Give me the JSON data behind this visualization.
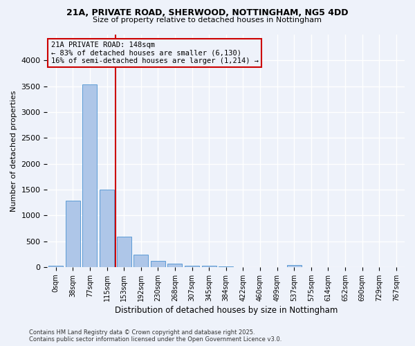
{
  "title1": "21A, PRIVATE ROAD, SHERWOOD, NOTTINGHAM, NG5 4DD",
  "title2": "Size of property relative to detached houses in Nottingham",
  "xlabel": "Distribution of detached houses by size in Nottingham",
  "ylabel": "Number of detached properties",
  "categories": [
    "0sqm",
    "38sqm",
    "77sqm",
    "115sqm",
    "153sqm",
    "192sqm",
    "230sqm",
    "268sqm",
    "307sqm",
    "345sqm",
    "384sqm",
    "422sqm",
    "460sqm",
    "499sqm",
    "537sqm",
    "575sqm",
    "614sqm",
    "652sqm",
    "690sqm",
    "729sqm",
    "767sqm"
  ],
  "values": [
    20,
    1280,
    3530,
    1500,
    590,
    245,
    120,
    70,
    30,
    20,
    5,
    0,
    0,
    0,
    40,
    0,
    0,
    0,
    0,
    0,
    0
  ],
  "bar_color": "#aec6e8",
  "bar_edge_color": "#5b9bd5",
  "vline_color": "#cc0000",
  "annotation_text": "21A PRIVATE ROAD: 148sqm\n← 83% of detached houses are smaller (6,130)\n16% of semi-detached houses are larger (1,214) →",
  "ylim": [
    0,
    4500
  ],
  "yticks": [
    0,
    500,
    1000,
    1500,
    2000,
    2500,
    3000,
    3500,
    4000
  ],
  "footer_line1": "Contains HM Land Registry data © Crown copyright and database right 2025.",
  "footer_line2": "Contains public sector information licensed under the Open Government Licence v3.0.",
  "bg_color": "#eef2fa",
  "grid_color": "#ffffff",
  "vline_x": 3.5
}
